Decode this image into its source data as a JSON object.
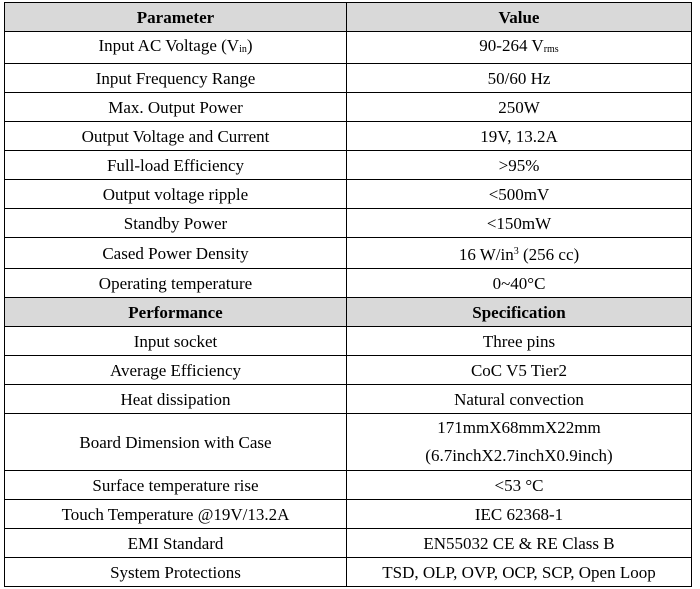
{
  "sections": [
    {
      "header": [
        "Parameter",
        "Value"
      ],
      "rows": [
        [
          {
            "text": "Input AC Voltage (V",
            "subscript": "in",
            "after": ")"
          },
          {
            "text": "90-264 V",
            "subscript": "rms"
          }
        ],
        [
          "Input Frequency Range",
          "50/60 Hz"
        ],
        [
          "Max. Output Power",
          "250W"
        ],
        [
          "Output Voltage and Current",
          "19V, 13.2A"
        ],
        [
          "Full-load Efficiency",
          ">95%"
        ],
        [
          "Output voltage ripple",
          "<500mV"
        ],
        [
          "Standby Power",
          "<150mW"
        ],
        [
          "Cased Power Density",
          {
            "text": "16 W/in",
            "superscript": "3",
            "after": " (256 cc)"
          }
        ],
        [
          "Operating temperature",
          "0~40°C"
        ]
      ]
    },
    {
      "header": [
        "Performance",
        "Specification"
      ],
      "rows": [
        [
          "Input socket",
          "Three pins"
        ],
        [
          "Average Efficiency",
          "CoC V5 Tier2"
        ],
        [
          "Heat dissipation",
          "Natural convection"
        ],
        [
          "Board Dimension with Case",
          [
            "171mmX68mmX22mm",
            "(6.7inchX2.7inchX0.9inch)"
          ]
        ],
        [
          "Surface temperature rise",
          "<53 °C"
        ],
        [
          "Touch Temperature @19V/13.2A",
          "IEC 62368-1"
        ],
        [
          "EMI Standard",
          "EN55032 CE & RE Class B"
        ],
        [
          "System Protections",
          "TSD, OLP, OVP, OCP, SCP, Open Loop"
        ]
      ]
    }
  ]
}
